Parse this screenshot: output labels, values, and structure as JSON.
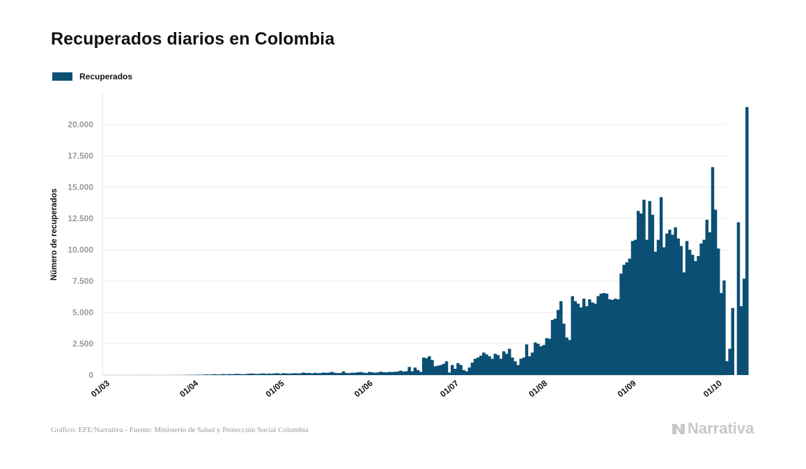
{
  "title": "Recuperados diarios en Colombia",
  "legend": {
    "label": "Recuperados",
    "color": "#0b4f74"
  },
  "source": "Gráfico: EFE/Narrativa - Fuente: Ministerio de Salud y Protección Social Colombia",
  "brand": "Narrativa",
  "chart_data": {
    "type": "bar",
    "title": "Recuperados diarios en Colombia",
    "ylabel": "Número de recuperados",
    "xlabel": "",
    "ylim": [
      0,
      22000
    ],
    "yticks": [
      0,
      2500,
      5000,
      7500,
      10000,
      12500,
      15000,
      17500,
      20000
    ],
    "ytick_labels": [
      "0",
      "2.500",
      "5.000",
      "7.500",
      "10.000",
      "12.500",
      "15.000",
      "17.500",
      "20.000"
    ],
    "xtick_labels": [
      "01/03",
      "01/04",
      "01/05",
      "01/06",
      "01/07",
      "01/08",
      "01/09",
      "01/10"
    ],
    "xlim": [
      "2020-03-01",
      "2020-10-01"
    ],
    "grid": true,
    "legend_position": "top-left",
    "bar_color": "#0b4f74",
    "start_date": "2020-03-01",
    "series": [
      {
        "name": "Recuperados",
        "values": [
          0,
          0,
          0,
          0,
          0,
          0,
          0,
          0,
          0,
          0,
          0,
          5,
          0,
          5,
          5,
          0,
          5,
          5,
          0,
          0,
          5,
          0,
          5,
          0,
          10,
          5,
          10,
          5,
          15,
          20,
          20,
          25,
          30,
          30,
          30,
          60,
          40,
          60,
          70,
          50,
          60,
          80,
          60,
          80,
          70,
          90,
          100,
          80,
          70,
          90,
          110,
          120,
          100,
          90,
          110,
          130,
          100,
          120,
          110,
          130,
          150,
          100,
          150,
          130,
          120,
          130,
          150,
          130,
          140,
          200,
          160,
          170,
          140,
          180,
          150,
          160,
          200,
          180,
          200,
          250,
          180,
          160,
          170,
          300,
          170,
          150,
          190,
          180,
          220,
          240,
          200,
          160,
          250,
          220,
          190,
          210,
          270,
          230,
          220,
          250,
          240,
          260,
          280,
          350,
          280,
          310,
          650,
          300,
          600,
          400,
          250,
          1400,
          1350,
          1500,
          1200,
          700,
          750,
          800,
          900,
          1100,
          200,
          800,
          500,
          950,
          800,
          400,
          300,
          600,
          1000,
          1300,
          1400,
          1550,
          1800,
          1650,
          1500,
          1300,
          1700,
          1600,
          1300,
          1900,
          1700,
          2100,
          1400,
          1100,
          800,
          1300,
          1400,
          2450,
          1500,
          1800,
          2600,
          2500,
          2300,
          2400,
          2950,
          2900,
          4400,
          4500,
          5200,
          5900,
          4100,
          3000,
          2800,
          6300,
          5900,
          5700,
          5400,
          6100,
          5500,
          6050,
          5800,
          5700,
          6300,
          6500,
          6550,
          6500,
          6050,
          6000,
          6100,
          6050,
          8100,
          8800,
          9000,
          9300,
          10700,
          10800,
          13100,
          12900,
          14000,
          10800,
          13900,
          12800,
          9850,
          10800,
          14200,
          10200,
          11300,
          11600,
          11200,
          11800,
          10900,
          10300,
          8200,
          10700,
          10000,
          9600,
          9100,
          9500,
          10500,
          10800,
          12400,
          11400,
          16600,
          13200,
          10100,
          6550,
          7550,
          1100,
          2100,
          5350,
          0,
          12200,
          5500,
          7700,
          21400
        ]
      }
    ]
  }
}
